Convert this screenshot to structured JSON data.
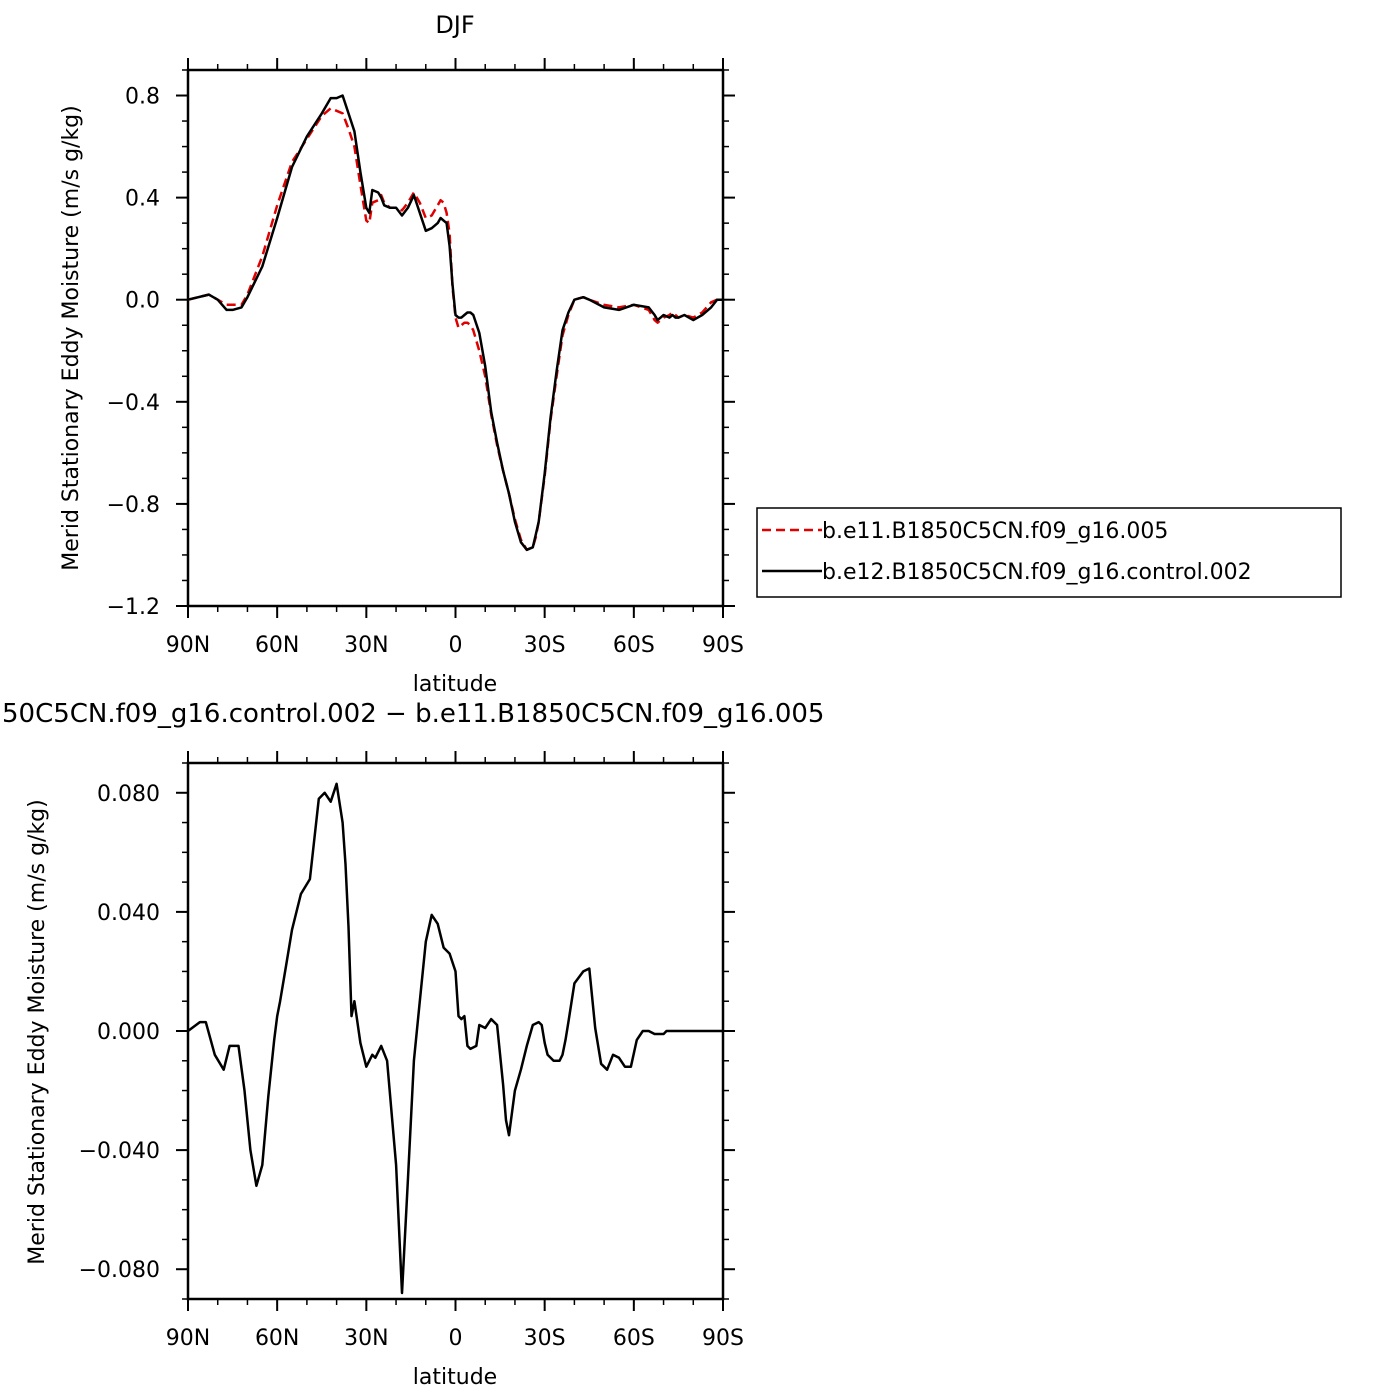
{
  "chart_data": [
    {
      "type": "line",
      "title": "DJF",
      "xlabel": "latitude",
      "ylabel": "Merid Stationary Eddy Moisture (m/s g/kg)",
      "xlim": [
        -90,
        90
      ],
      "ylim": [
        -1.2,
        0.9
      ],
      "x_ticks": [
        -90,
        -60,
        -30,
        0,
        30,
        60,
        90
      ],
      "x_tick_labels": [
        "90N",
        "60N",
        "30N",
        "0",
        "30S",
        "60S",
        "90S"
      ],
      "y_ticks": [
        -1.2,
        -0.8,
        -0.4,
        0.0,
        0.4,
        0.8
      ],
      "y_tick_labels": [
        "−1.2",
        "−0.8",
        "−0.4",
        "0.0",
        "0.4",
        "0.8"
      ],
      "legend_position": "right",
      "series": [
        {
          "name": "b.e11.B1850C5CN.f09_g16.005",
          "color": "#e00000",
          "dash": "dashed",
          "x": [
            -90,
            -83,
            -80,
            -77,
            -75,
            -72,
            -70,
            -65,
            -60,
            -55,
            -50,
            -45,
            -42,
            -40,
            -38,
            -36,
            -34,
            -32,
            -30,
            -29,
            -28,
            -26,
            -25,
            -24,
            -22,
            -20,
            -18,
            -16,
            -14,
            -12,
            -10,
            -8,
            -6,
            -5,
            -4,
            -3,
            -2,
            -1,
            0,
            1,
            2,
            3,
            4,
            5,
            6,
            8,
            10,
            12,
            14,
            16,
            18,
            20,
            22,
            24,
            26,
            27,
            28,
            30,
            32,
            34,
            36,
            38,
            40,
            43,
            45,
            50,
            55,
            60,
            65,
            67,
            68,
            69,
            70,
            72,
            73,
            74,
            75,
            77,
            80,
            83,
            86,
            88,
            90
          ],
          "values": [
            0.0,
            0.02,
            0.0,
            -0.02,
            -0.02,
            -0.02,
            0.02,
            0.17,
            0.37,
            0.54,
            0.63,
            0.72,
            0.75,
            0.74,
            0.73,
            0.67,
            0.6,
            0.45,
            0.31,
            0.3,
            0.38,
            0.39,
            0.41,
            0.38,
            0.36,
            0.36,
            0.35,
            0.38,
            0.42,
            0.38,
            0.32,
            0.33,
            0.37,
            0.39,
            0.38,
            0.34,
            0.26,
            0.05,
            -0.07,
            -0.11,
            -0.1,
            -0.09,
            -0.09,
            -0.1,
            -0.12,
            -0.2,
            -0.3,
            -0.45,
            -0.57,
            -0.67,
            -0.76,
            -0.86,
            -0.94,
            -0.98,
            -0.97,
            -0.93,
            -0.87,
            -0.69,
            -0.47,
            -0.3,
            -0.14,
            -0.06,
            0.0,
            0.01,
            0.0,
            -0.02,
            -0.03,
            -0.02,
            -0.04,
            -0.08,
            -0.09,
            -0.08,
            -0.07,
            -0.06,
            -0.05,
            -0.06,
            -0.07,
            -0.06,
            -0.07,
            -0.05,
            -0.01,
            0.0,
            0.0
          ]
        },
        {
          "name": "b.e12.B1850C5CN.f09_g16.control.002",
          "color": "#000000",
          "dash": "solid",
          "x": [
            -90,
            -83,
            -80,
            -77,
            -75,
            -72,
            -70,
            -65,
            -60,
            -55,
            -50,
            -45,
            -42,
            -40,
            -38,
            -36,
            -34,
            -32,
            -30,
            -29,
            -28,
            -26,
            -25,
            -24,
            -22,
            -20,
            -18,
            -16,
            -14,
            -12,
            -10,
            -8,
            -6,
            -5,
            -4,
            -3,
            -2,
            -1,
            0,
            1,
            2,
            3,
            4,
            5,
            6,
            8,
            10,
            12,
            14,
            16,
            18,
            20,
            22,
            24,
            26,
            27,
            28,
            30,
            32,
            34,
            36,
            38,
            40,
            43,
            45,
            50,
            55,
            60,
            65,
            67,
            68,
            69,
            70,
            72,
            73,
            74,
            75,
            77,
            80,
            83,
            86,
            88,
            90
          ],
          "values": [
            0.0,
            0.02,
            0.0,
            -0.04,
            -0.04,
            -0.03,
            0.01,
            0.13,
            0.32,
            0.52,
            0.64,
            0.73,
            0.79,
            0.79,
            0.8,
            0.73,
            0.66,
            0.5,
            0.36,
            0.34,
            0.43,
            0.42,
            0.4,
            0.37,
            0.36,
            0.36,
            0.33,
            0.36,
            0.41,
            0.34,
            0.27,
            0.28,
            0.3,
            0.32,
            0.31,
            0.3,
            0.21,
            0.06,
            -0.06,
            -0.07,
            -0.07,
            -0.06,
            -0.05,
            -0.05,
            -0.06,
            -0.13,
            -0.26,
            -0.44,
            -0.56,
            -0.67,
            -0.76,
            -0.87,
            -0.95,
            -0.98,
            -0.97,
            -0.92,
            -0.87,
            -0.68,
            -0.46,
            -0.28,
            -0.12,
            -0.05,
            0.0,
            0.01,
            0.0,
            -0.03,
            -0.04,
            -0.02,
            -0.03,
            -0.06,
            -0.08,
            -0.07,
            -0.06,
            -0.07,
            -0.06,
            -0.07,
            -0.07,
            -0.06,
            -0.08,
            -0.06,
            -0.03,
            0.0,
            0.0
          ]
        }
      ]
    },
    {
      "type": "line",
      "title": "50C5CN.f09_g16.control.002 − b.e11.B1850C5CN.f09_g16.005",
      "xlabel": "latitude",
      "ylabel": "Merid Stationary Eddy Moisture (m/s g/kg)",
      "xlim": [
        -90,
        90
      ],
      "ylim": [
        -0.09,
        0.09
      ],
      "x_ticks": [
        -90,
        -60,
        -30,
        0,
        30,
        60,
        90
      ],
      "x_tick_labels": [
        "90N",
        "60N",
        "30N",
        "0",
        "30S",
        "60S",
        "90S"
      ],
      "y_ticks": [
        -0.08,
        -0.04,
        0.0,
        0.04,
        0.08
      ],
      "y_tick_labels": [
        "−0.080",
        "−0.040",
        "0.000",
        "0.040",
        "0.080"
      ],
      "series": [
        {
          "color": "#000000",
          "dash": "solid",
          "x": [
            -90,
            -86,
            -84,
            -81,
            -78,
            -76,
            -73,
            -71,
            -69,
            -67,
            -65,
            -63,
            -61,
            -60,
            -59,
            -57,
            -55,
            -52,
            -49,
            -46,
            -44,
            -42,
            -40,
            -38,
            -37,
            -36,
            -35,
            -34,
            -32,
            -30,
            -29,
            -28,
            -27,
            -25,
            -23,
            -20,
            -18,
            -16,
            -14,
            -12,
            -10,
            -8,
            -6,
            -4,
            -2,
            0,
            1,
            2,
            3,
            4,
            5,
            7,
            8,
            10,
            12,
            14,
            16,
            17,
            18,
            20,
            22,
            24,
            26,
            28,
            29,
            30,
            31,
            33,
            35,
            36,
            37,
            38,
            40,
            43,
            45,
            47,
            49,
            51,
            53,
            55,
            57,
            59,
            61,
            63,
            65,
            67,
            69,
            70,
            71,
            72,
            73,
            75,
            77,
            78,
            80,
            82,
            84,
            86,
            88,
            90
          ],
          "values": [
            0.0,
            0.003,
            0.003,
            -0.008,
            -0.013,
            -0.005,
            -0.005,
            -0.02,
            -0.04,
            -0.052,
            -0.045,
            -0.022,
            -0.003,
            0.005,
            0.01,
            0.022,
            0.034,
            0.046,
            0.051,
            0.078,
            0.08,
            0.077,
            0.083,
            0.07,
            0.056,
            0.035,
            0.005,
            0.01,
            -0.004,
            -0.012,
            -0.01,
            -0.008,
            -0.009,
            -0.005,
            -0.01,
            -0.045,
            -0.088,
            -0.05,
            -0.01,
            0.01,
            0.03,
            0.039,
            0.036,
            0.028,
            0.026,
            0.02,
            0.005,
            0.004,
            0.005,
            -0.005,
            -0.006,
            -0.005,
            0.002,
            0.001,
            0.004,
            0.002,
            -0.018,
            -0.03,
            -0.035,
            -0.02,
            -0.013,
            -0.005,
            0.002,
            0.003,
            0.002,
            -0.004,
            -0.008,
            -0.01,
            -0.01,
            -0.008,
            -0.003,
            0.003,
            0.016,
            0.02,
            0.021,
            0.001,
            -0.011,
            -0.013,
            -0.008,
            -0.009,
            -0.012,
            -0.012,
            -0.003,
            0.0,
            0.0,
            -0.001,
            -0.001,
            -0.001,
            0.0,
            0.0,
            0.0,
            0.0,
            0.0,
            0.0,
            0.0,
            0.0,
            0.0,
            0.0,
            0.0,
            0.0
          ]
        }
      ]
    }
  ]
}
